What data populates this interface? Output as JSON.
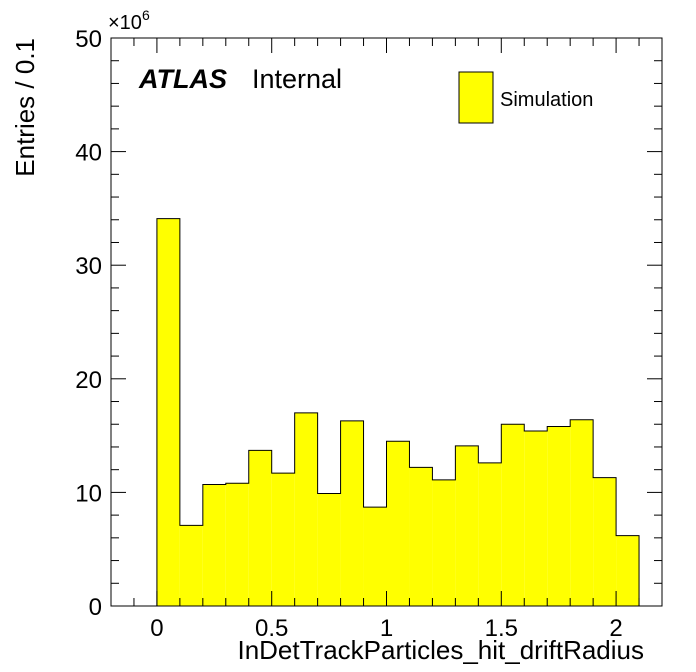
{
  "chart_data": {
    "type": "bar",
    "histogram": true,
    "x": [
      0.0,
      0.1,
      0.2,
      0.3,
      0.4,
      0.5,
      0.6,
      0.7,
      0.8,
      0.9,
      1.0,
      1.1,
      1.2,
      1.3,
      1.4,
      1.5,
      1.6,
      1.7,
      1.8,
      1.9,
      2.0
    ],
    "bin_width": 0.1,
    "series": [
      {
        "name": "Simulation",
        "color": "#ffff00",
        "values": [
          34.1,
          7.1,
          10.7,
          10.8,
          13.7,
          11.7,
          17.0,
          9.9,
          16.3,
          8.7,
          14.5,
          12.2,
          11.1,
          14.1,
          12.6,
          16.0,
          15.4,
          15.8,
          16.4,
          11.3,
          6.2
        ]
      }
    ],
    "xlabel": "InDetTrackParticles_hit_driftRadius",
    "ylabel": "Entries / 0.1",
    "y_multiplier_base": "×10",
    "y_multiplier_exp": "6",
    "xlim": [
      -0.2,
      2.2
    ],
    "ylim": [
      0,
      50
    ],
    "x_ticks": [
      0,
      0.5,
      1,
      1.5,
      2
    ],
    "x_tick_labels": [
      "0",
      "0.5",
      "1",
      "1.5",
      "2"
    ],
    "y_ticks": [
      0,
      10,
      20,
      30,
      40,
      50
    ],
    "y_tick_labels": [
      "0",
      "10",
      "20",
      "30",
      "40",
      "50"
    ],
    "atlas_label": "ATLAS",
    "atlas_sublabel": "Internal",
    "legend_position": "top-right",
    "grid": false
  }
}
